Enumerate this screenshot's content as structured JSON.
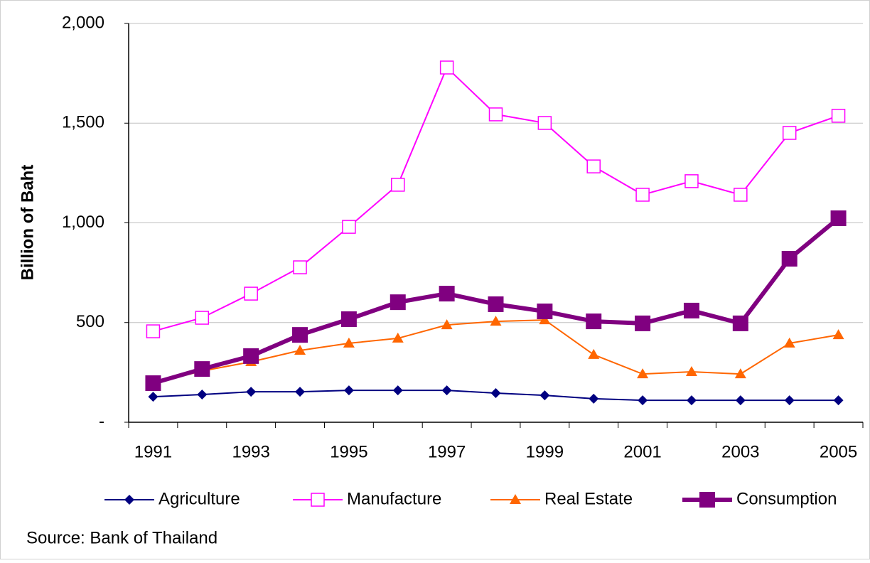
{
  "chart_data": {
    "type": "line",
    "y_label": "Billion of Baht",
    "source": "Source: Bank of Thailand",
    "categories": [
      "1991",
      null,
      "1993",
      null,
      "1995",
      null,
      "1997",
      null,
      "1999",
      null,
      "2001",
      null,
      "2003",
      null,
      "2005"
    ],
    "ylim": [
      0,
      2000
    ],
    "yticks": [
      {
        "value": 0,
        "label": "-"
      },
      500,
      {
        "value": 1000,
        "label": "1,000"
      },
      {
        "value": 1500,
        "label": "1,500"
      },
      {
        "value": 2000,
        "label": "2,000"
      }
    ],
    "grid": true,
    "legend": "bottom",
    "series": [
      {
        "name": "Agriculture",
        "color": "#000080",
        "marker": "diamond",
        "line_width": 2,
        "values": [
          128,
          139,
          153,
          153,
          160,
          160,
          160,
          146,
          135,
          118,
          110,
          110,
          110,
          110,
          110
        ]
      },
      {
        "name": "Manufacture",
        "color": "#ff00ff",
        "marker": "square-open",
        "line_width": 2,
        "values": [
          456,
          524,
          645,
          777,
          980,
          1191,
          1779,
          1544,
          1501,
          1283,
          1141,
          1209,
          1141,
          1451,
          1537
        ]
      },
      {
        "name": "Real Estate",
        "color": "#ff6600",
        "marker": "triangle",
        "line_width": 2,
        "values": [
          196,
          257,
          303,
          360,
          396,
          421,
          488,
          506,
          513,
          339,
          242,
          253,
          242,
          396,
          438
        ]
      },
      {
        "name": "Consumption",
        "color": "#800080",
        "marker": "square",
        "line_width": 6,
        "values": [
          196,
          267,
          332,
          438,
          517,
          602,
          645,
          592,
          556,
          506,
          496,
          560,
          496,
          820,
          1023
        ]
      }
    ]
  }
}
